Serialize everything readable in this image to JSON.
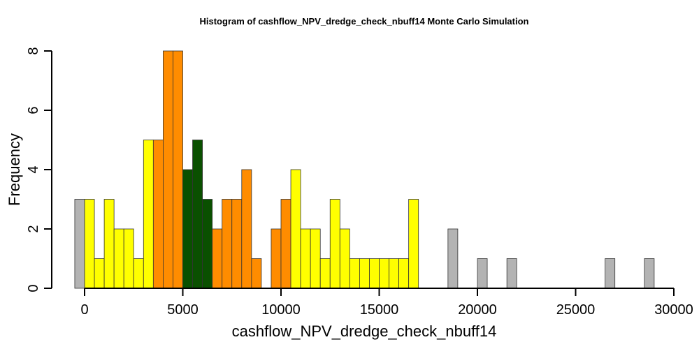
{
  "chart_data": {
    "type": "bar",
    "title": "Histogram of  cashflow_NPV_dredge_check_nbuff14  Monte Carlo Simulation",
    "xlabel": "cashflow_NPV_dredge_check_nbuff14",
    "ylabel": "Frequency",
    "xlim": [
      -500,
      30000
    ],
    "ylim": [
      0,
      8
    ],
    "xticks": [
      "0",
      "5000",
      "10000",
      "15000",
      "20000",
      "25000",
      "30000"
    ],
    "yticks": [
      "0",
      "2",
      "4",
      "6",
      "8"
    ],
    "bin_start": -500,
    "bin_width": 500,
    "counts": [
      3,
      3,
      1,
      3,
      2,
      2,
      1,
      5,
      5,
      8,
      8,
      4,
      5,
      3,
      2,
      3,
      3,
      4,
      1,
      0,
      2,
      3,
      4,
      2,
      2,
      1,
      3,
      2,
      1,
      1,
      1,
      1,
      1,
      1,
      3,
      0,
      0,
      0,
      2,
      0,
      0,
      1,
      0,
      0,
      1,
      0,
      0,
      0,
      0,
      0,
      0,
      0,
      0,
      0,
      1,
      0,
      0,
      0,
      1
    ],
    "colors": {
      "grey": "#b3b3b3",
      "yellow": "#ffff00",
      "orange": "#ff8c00",
      "green": "#0a5000"
    },
    "color_ranges": [
      {
        "from": -500,
        "to": 0,
        "color": "grey"
      },
      {
        "from": 0,
        "to": 3500,
        "color": "yellow"
      },
      {
        "from": 3500,
        "to": 5000,
        "color": "orange"
      },
      {
        "from": 5000,
        "to": 6500,
        "color": "green"
      },
      {
        "from": 6500,
        "to": 10500,
        "color": "orange"
      },
      {
        "from": 10500,
        "to": 17000,
        "color": "yellow"
      },
      {
        "from": 17000,
        "to": 29000,
        "color": "grey"
      }
    ]
  }
}
